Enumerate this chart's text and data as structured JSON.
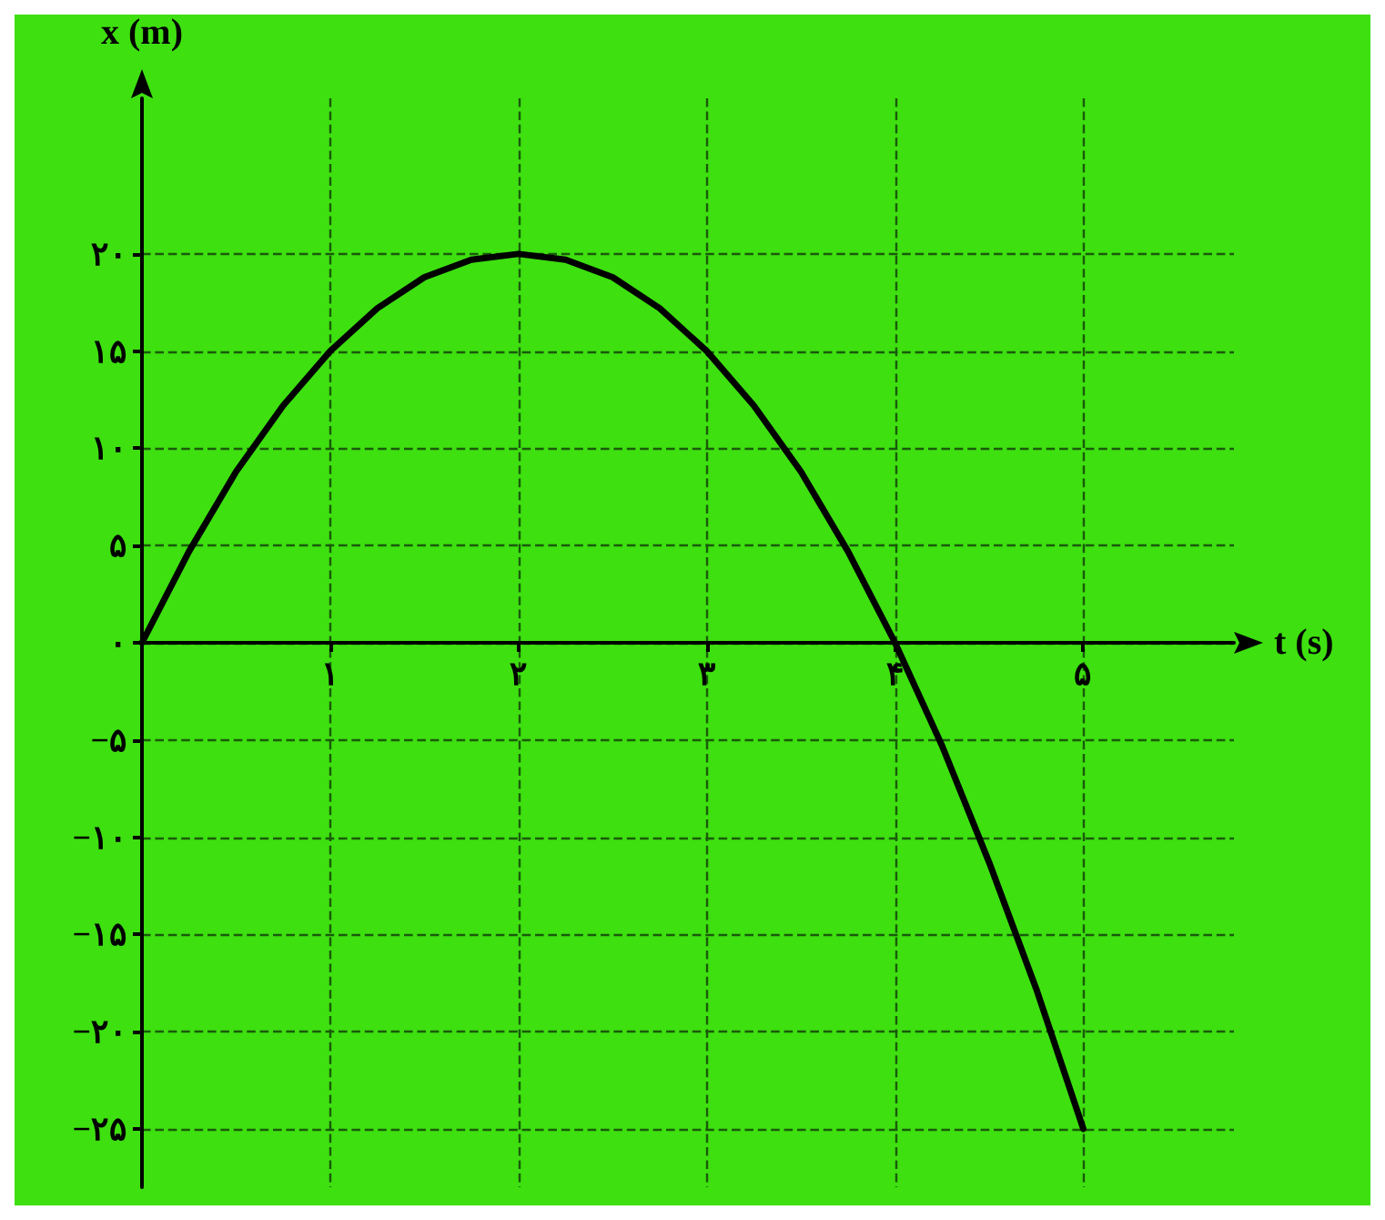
{
  "chart_data": {
    "type": "line",
    "xlabel": "t (s)",
    "ylabel": "x (m)",
    "x": [
      0,
      0.25,
      0.5,
      0.75,
      1,
      1.25,
      1.5,
      1.75,
      2,
      2.25,
      2.5,
      2.75,
      3,
      3.25,
      3.5,
      3.75,
      4,
      4.25,
      4.5,
      4.75,
      5
    ],
    "series": [
      {
        "color": "#000000",
        "values": [
          0,
          4.7,
          8.8,
          12.2,
          15,
          17.2,
          18.8,
          19.7,
          20,
          19.7,
          18.8,
          17.2,
          15,
          12.2,
          8.8,
          4.7,
          0,
          -5.3,
          -11.3,
          -17.8,
          -25
        ]
      }
    ],
    "xlim": [
      0,
      5.8
    ],
    "ylim": [
      -28,
      28
    ],
    "xticks": [
      {
        "value": 1,
        "label": "۱"
      },
      {
        "value": 2,
        "label": "۲"
      },
      {
        "value": 3,
        "label": "۳"
      },
      {
        "value": 4,
        "label": "۴"
      },
      {
        "value": 5,
        "label": "۵"
      }
    ],
    "yticks": [
      {
        "value": -25,
        "label": "−۲۵"
      },
      {
        "value": -20,
        "label": "−۲۰"
      },
      {
        "value": -15,
        "label": "−۱۵"
      },
      {
        "value": -10,
        "label": "−۱۰"
      },
      {
        "value": -5,
        "label": "−۵"
      },
      {
        "value": 0,
        "label": "۰"
      },
      {
        "value": 5,
        "label": "۵"
      },
      {
        "value": 10,
        "label": "۱۰"
      },
      {
        "value": 15,
        "label": "۱۵"
      },
      {
        "value": 20,
        "label": "۲۰"
      }
    ],
    "grid": true,
    "marker": "none",
    "line_style": "solid"
  }
}
